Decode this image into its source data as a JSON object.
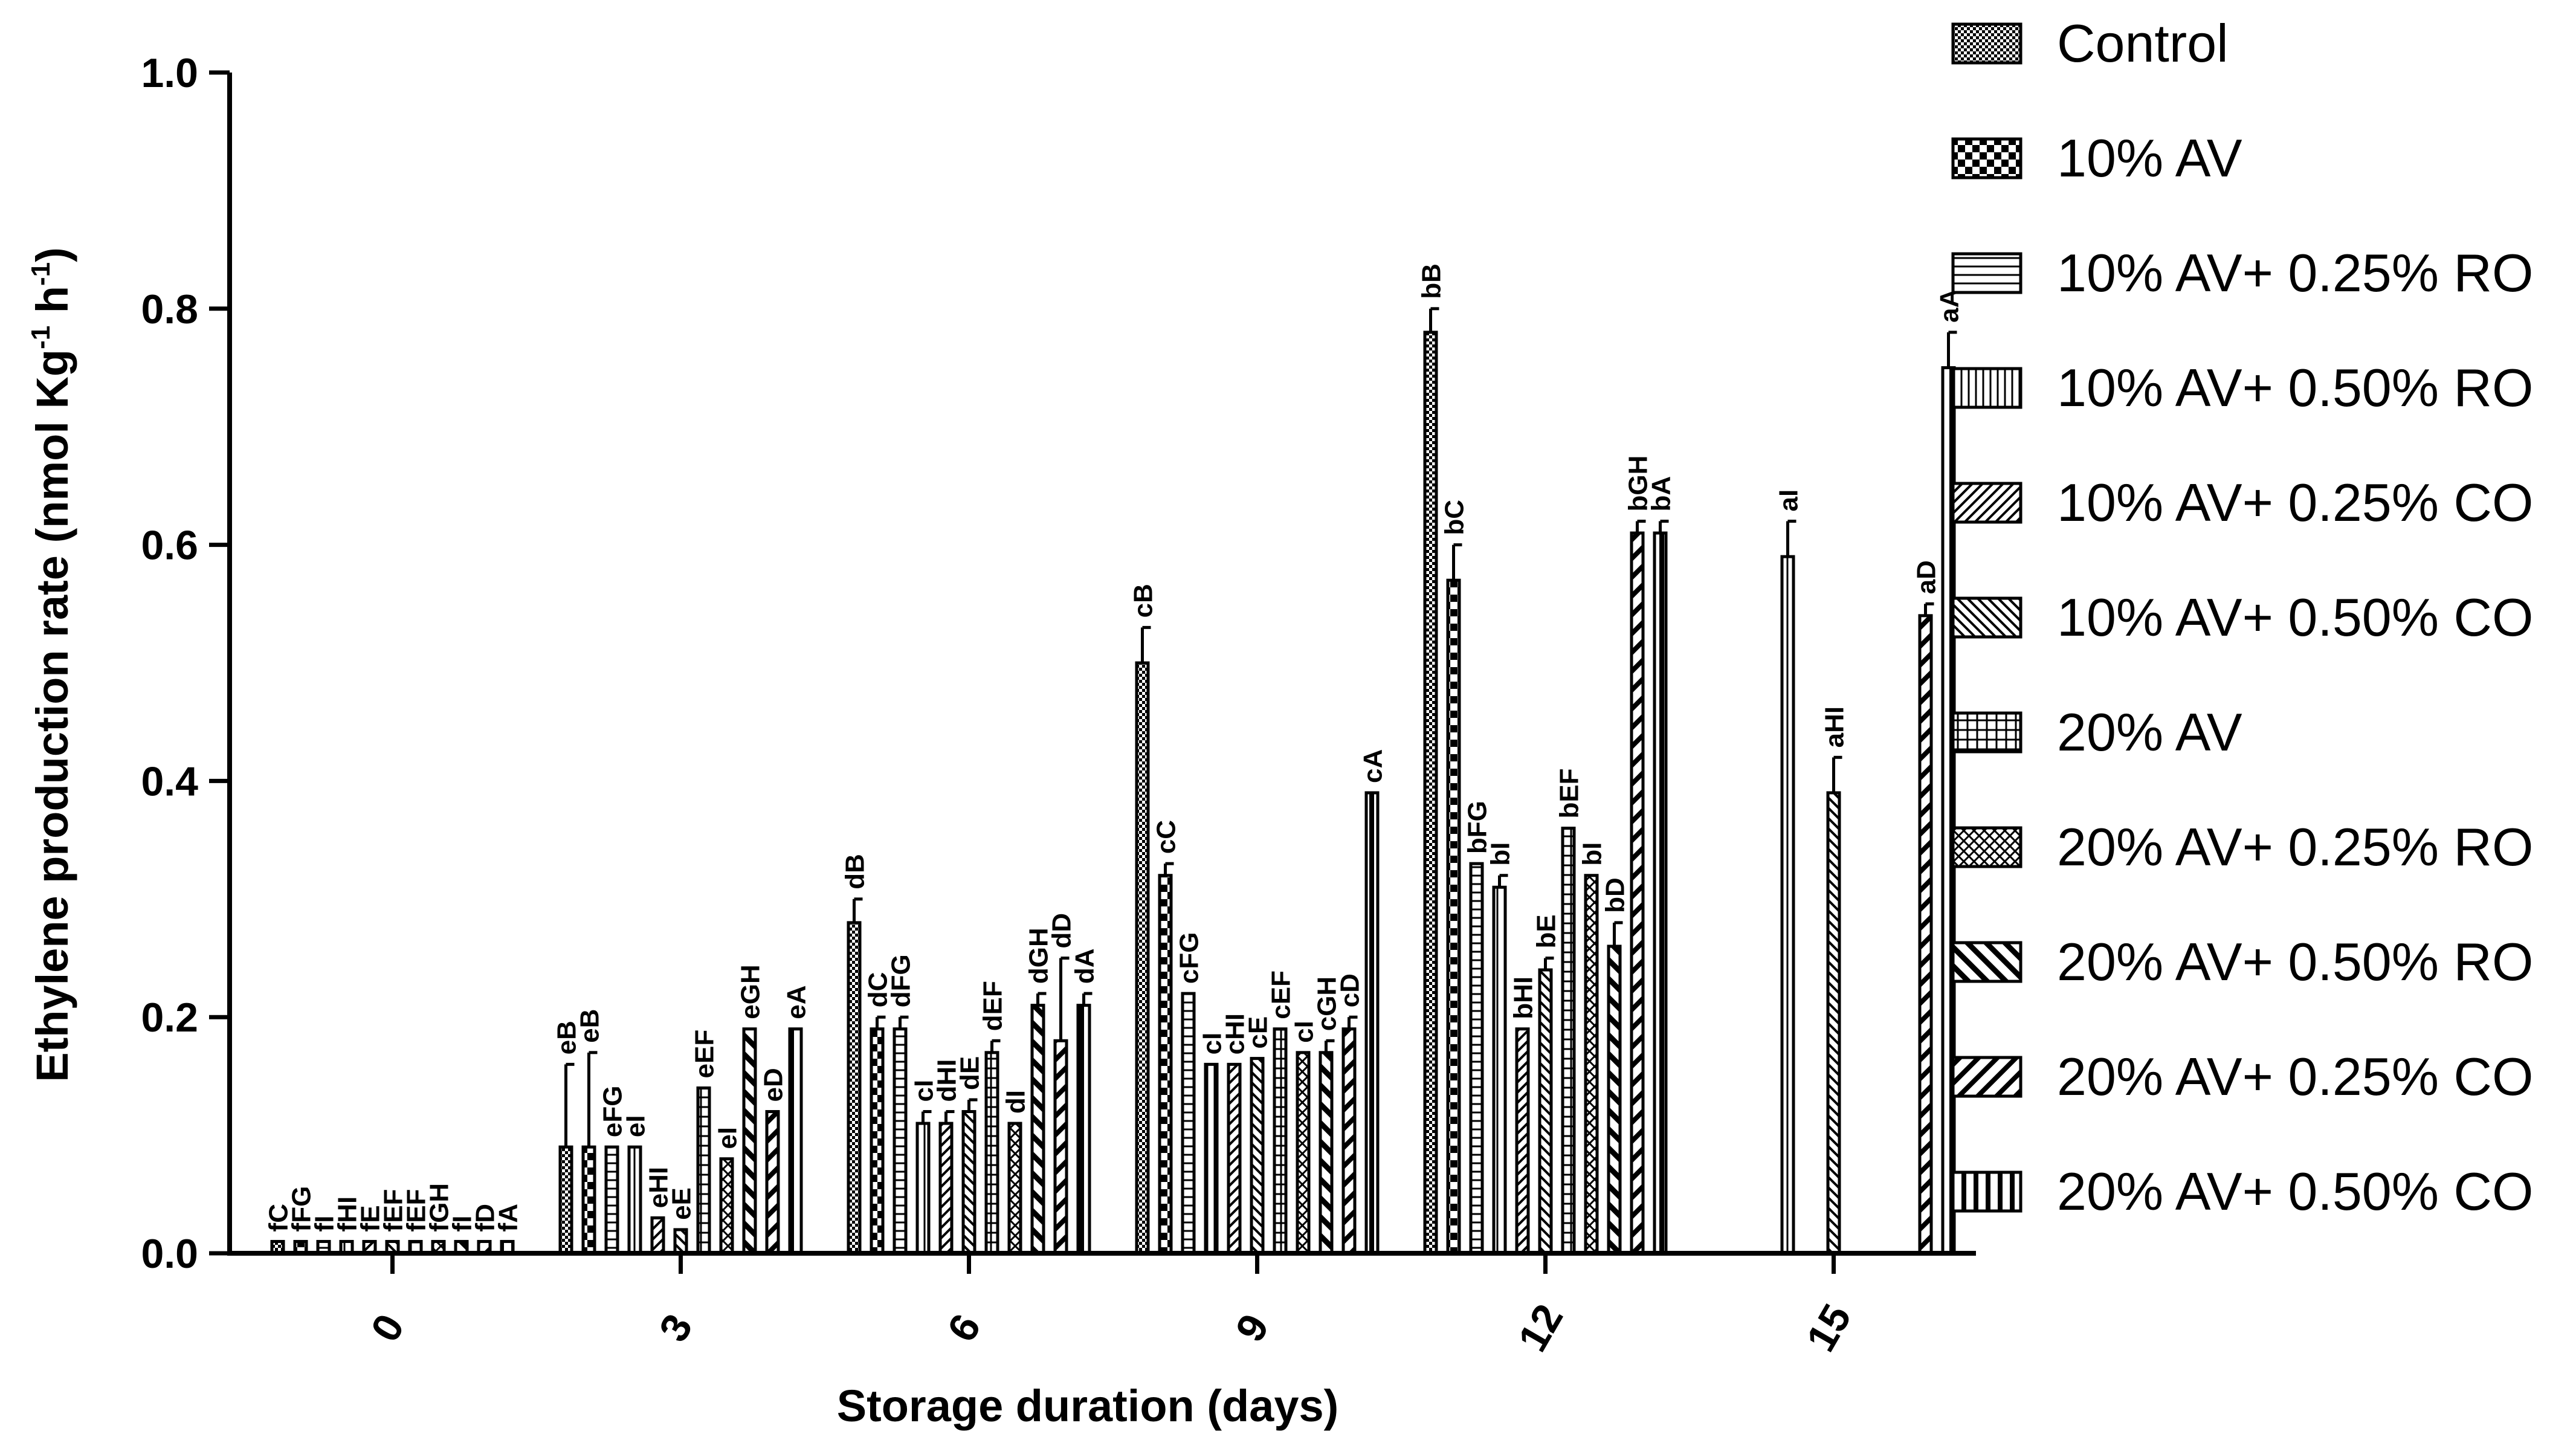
{
  "chart_data": {
    "type": "bar",
    "title": "",
    "xlabel": "Storage duration (days)",
    "ylabel_main": "Ethylene production rate (nmol Kg",
    "ylabel_sup1": "-1",
    "ylabel_mid": " h",
    "ylabel_sup2": "-1",
    "ylabel_end": ")",
    "ylim": [
      0,
      1.0
    ],
    "yticks": [
      "0.0",
      "0.2",
      "0.4",
      "0.6",
      "0.8",
      "1.0"
    ],
    "categories": [
      "0",
      "3",
      "6",
      "9",
      "12",
      "15"
    ],
    "series": [
      {
        "name": "Control",
        "pattern": "checker-fine",
        "values": [
          0.01,
          0.09,
          0.28,
          0.5,
          0.78,
          null
        ],
        "errors": [
          0,
          0.07,
          0.02,
          0.03,
          0.02,
          0
        ],
        "labels": [
          "fC",
          "eB",
          "dB",
          "cB",
          "bB",
          ""
        ]
      },
      {
        "name": "10% AV",
        "pattern": "checker-coarse",
        "values": [
          0.01,
          0.09,
          0.19,
          0.32,
          0.57,
          null
        ],
        "errors": [
          0,
          0.08,
          0.01,
          0.01,
          0.03,
          0
        ],
        "labels": [
          "fFG",
          "eB",
          "dC",
          "cC",
          "bC",
          ""
        ]
      },
      {
        "name": "10% AV+ 0.25% RO",
        "pattern": "hlines",
        "values": [
          0.01,
          0.09,
          0.19,
          0.22,
          0.33,
          null
        ],
        "errors": [
          0,
          0,
          0.01,
          0,
          0,
          0
        ],
        "labels": [
          "fI",
          "eFG",
          "dFG",
          "cFG",
          "bFG",
          ""
        ]
      },
      {
        "name": "10% AV+ 0.50% RO",
        "pattern": "vlines",
        "values": [
          0.01,
          0.09,
          0.11,
          0.16,
          0.31,
          0.59
        ],
        "errors": [
          0,
          0,
          0.01,
          0,
          0.01,
          0.03
        ],
        "labels": [
          "fHI",
          "eI",
          "cI",
          "cI",
          "bI",
          "aI"
        ]
      },
      {
        "name": "10% AV+ 0.25% CO",
        "pattern": "diag-up",
        "values": [
          0.01,
          0.03,
          0.11,
          0.16,
          0.19,
          null
        ],
        "errors": [
          0,
          0,
          0.01,
          0,
          0,
          0
        ],
        "labels": [
          "fE",
          "eHI",
          "dHI",
          "cHI",
          "bHI",
          ""
        ]
      },
      {
        "name": "10% AV+ 0.50% CO",
        "pattern": "diag-down",
        "values": [
          0.01,
          0.02,
          0.12,
          0.165,
          0.24,
          0.39
        ],
        "errors": [
          0,
          0,
          0.01,
          0,
          0.01,
          0.03
        ],
        "labels": [
          "fEF",
          "eE",
          "dE",
          "cE",
          "bE",
          "aHI"
        ]
      },
      {
        "name": "20% AV",
        "pattern": "grid",
        "values": [
          0.01,
          0.14,
          0.17,
          0.19,
          0.36,
          null
        ],
        "errors": [
          0,
          0,
          0.01,
          0,
          0,
          0
        ],
        "labels": [
          "fEF",
          "eEF",
          "dEF",
          "cEF",
          "bEF",
          ""
        ]
      },
      {
        "name": "20% AV+ 0.25% RO",
        "pattern": "crosshatch",
        "values": [
          0.01,
          0.08,
          0.11,
          0.17,
          0.32,
          null
        ],
        "errors": [
          0,
          0,
          0,
          0,
          0,
          0
        ],
        "labels": [
          "fGH",
          "eI",
          "dI",
          "cI",
          "bI",
          ""
        ]
      },
      {
        "name": "20% AV+ 0.50% RO",
        "pattern": "thick-diag-down",
        "values": [
          0.01,
          0.19,
          0.21,
          0.17,
          0.26,
          null
        ],
        "errors": [
          0,
          0,
          0.01,
          0.01,
          0.02,
          0
        ],
        "labels": [
          "fI",
          "eGH",
          "dGH",
          "cGH",
          "bD",
          ""
        ]
      },
      {
        "name": "20% AV+ 0.25% CO",
        "pattern": "thick-diag-up",
        "values": [
          0.01,
          0.12,
          0.18,
          0.19,
          0.61,
          0.54
        ],
        "errors": [
          0,
          0,
          0.07,
          0.01,
          0.01,
          0.01
        ],
        "labels": [
          "fD",
          "eD",
          "dD",
          "cD",
          "bGH",
          "aD"
        ]
      },
      {
        "name": "20% AV+ 0.50% CO",
        "pattern": "thick-vlines",
        "values": [
          0.01,
          0.19,
          0.21,
          0.39,
          0.61,
          0.75
        ],
        "errors": [
          0,
          0,
          0.01,
          0,
          0.01,
          0.03
        ],
        "labels": [
          "fA",
          "eA",
          "dA",
          "cA",
          "bA",
          "aA"
        ]
      }
    ],
    "legend_position": "right"
  }
}
